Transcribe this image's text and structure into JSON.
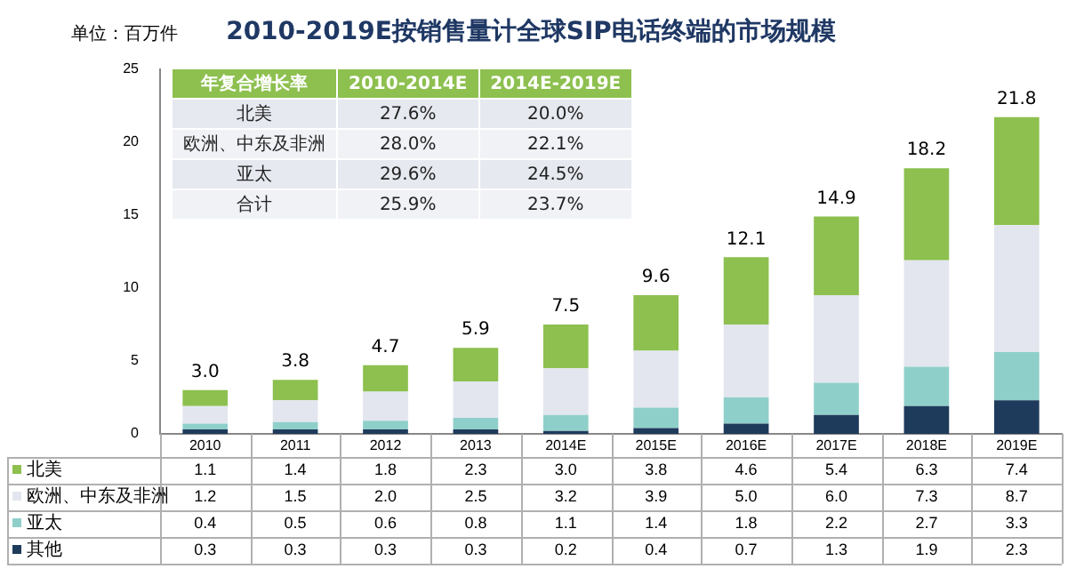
{
  "chart_data": {
    "type": "bar",
    "title": "2010-2019E按销售量计全球SIP电话终端的市场规模",
    "categories": [
      "2010",
      "2011",
      "2012",
      "2013",
      "2014E",
      "2015E",
      "2016E",
      "2017E",
      "2018E",
      "2019E"
    ],
    "stacked": true,
    "series": [
      {
        "name": "其他",
        "color": "#1f3b5c",
        "values": [
          0.3,
          0.3,
          0.3,
          0.3,
          0.2,
          0.4,
          0.7,
          1.3,
          1.9,
          2.3
        ],
        "value_labels": [
          "0.3",
          "0.3",
          "0.3",
          "0.3",
          "0.2",
          "0.4",
          "0.7",
          "1.3",
          "1.9",
          "2.3"
        ]
      },
      {
        "name": "亚太",
        "color": "#8fcfca",
        "values": [
          0.4,
          0.5,
          0.6,
          0.8,
          1.1,
          1.4,
          1.8,
          2.2,
          2.7,
          3.3
        ],
        "value_labels": [
          "0.4",
          "0.5",
          "0.6",
          "0.8",
          "1.1",
          "1.4",
          "1.8",
          "2.2",
          "2.7",
          "3.3"
        ]
      },
      {
        "name": "欧洲、中东及非洲",
        "color": "#e3e6ef",
        "values": [
          1.2,
          1.5,
          2.0,
          2.5,
          3.2,
          3.9,
          5.0,
          6.0,
          7.3,
          8.7
        ],
        "value_labels": [
          "1.2",
          "1.5",
          "2.0",
          "2.5",
          "3.2",
          "3.9",
          "5.0",
          "6.0",
          "7.3",
          "8.7"
        ]
      },
      {
        "name": "北美",
        "color": "#8dc04f",
        "values": [
          1.1,
          1.4,
          1.8,
          2.3,
          3.0,
          3.8,
          4.6,
          5.4,
          6.3,
          7.4
        ],
        "value_labels": [
          "1.1",
          "1.4",
          "1.8",
          "2.3",
          "3.0",
          "3.8",
          "4.6",
          "5.4",
          "6.3",
          "7.4"
        ]
      }
    ],
    "totals": [
      "3.0",
      "3.8",
      "4.7",
      "5.9",
      "7.5",
      "9.6",
      "12.1",
      "14.9",
      "18.2",
      "21.8"
    ],
    "ylim": [
      0,
      25
    ],
    "yticks": [
      0,
      5,
      10,
      15,
      20,
      25
    ],
    "grid": false,
    "legend": "bottom",
    "annotations": [
      "单位：百万件",
      "年复合增长率",
      "2010-2014E",
      "2014E-2019E",
      "北美",
      "27.6%",
      "20.0%",
      "欧洲、中东及非洲",
      "28.0%",
      "22.1%",
      "亚太",
      "29.6%",
      "24.5%",
      "合计",
      "25.9%",
      "23.7%"
    ]
  }
}
